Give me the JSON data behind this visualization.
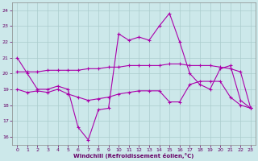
{
  "xlabel": "Windchill (Refroidissement éolien,°C)",
  "background_color": "#cce8ea",
  "grid_color": "#aacccc",
  "line_color": "#aa00aa",
  "xlim": [
    -0.5,
    23.5
  ],
  "ylim": [
    15.5,
    24.5
  ],
  "yticks": [
    16,
    17,
    18,
    19,
    20,
    21,
    22,
    23,
    24
  ],
  "xticks": [
    0,
    1,
    2,
    3,
    4,
    5,
    6,
    7,
    8,
    9,
    10,
    11,
    12,
    13,
    14,
    15,
    16,
    17,
    18,
    19,
    20,
    21,
    22,
    23
  ],
  "line1_x": [
    0,
    1,
    2,
    3,
    4,
    5,
    6,
    7,
    8,
    9,
    10,
    11,
    12,
    13,
    14,
    15,
    16,
    17,
    18,
    19,
    20,
    21,
    22,
    23
  ],
  "line1_y": [
    21.0,
    20.0,
    19.0,
    19.0,
    19.2,
    19.0,
    16.6,
    15.8,
    17.7,
    17.8,
    22.5,
    22.1,
    22.3,
    22.1,
    23.0,
    23.8,
    22.0,
    20.0,
    19.3,
    19.0,
    20.3,
    20.5,
    18.3,
    17.8
  ],
  "line2_x": [
    0,
    1,
    2,
    3,
    4,
    5,
    6,
    7,
    8,
    9,
    10,
    11,
    12,
    13,
    14,
    15,
    16,
    17,
    18,
    19,
    20,
    21,
    22,
    23
  ],
  "line2_y": [
    20.1,
    20.1,
    20.1,
    20.2,
    20.2,
    20.2,
    20.2,
    20.3,
    20.3,
    20.4,
    20.4,
    20.5,
    20.5,
    20.5,
    20.5,
    20.6,
    20.6,
    20.5,
    20.5,
    20.5,
    20.4,
    20.3,
    20.1,
    17.8
  ],
  "line3_x": [
    0,
    1,
    2,
    3,
    4,
    5,
    6,
    7,
    8,
    9,
    10,
    11,
    12,
    13,
    14,
    15,
    16,
    17,
    18,
    19,
    20,
    21,
    22,
    23
  ],
  "line3_y": [
    19.0,
    18.8,
    18.9,
    18.8,
    19.0,
    18.7,
    18.5,
    18.3,
    18.4,
    18.5,
    18.7,
    18.8,
    18.9,
    18.9,
    18.9,
    18.2,
    18.2,
    19.3,
    19.5,
    19.5,
    19.5,
    18.5,
    18.0,
    17.8
  ]
}
